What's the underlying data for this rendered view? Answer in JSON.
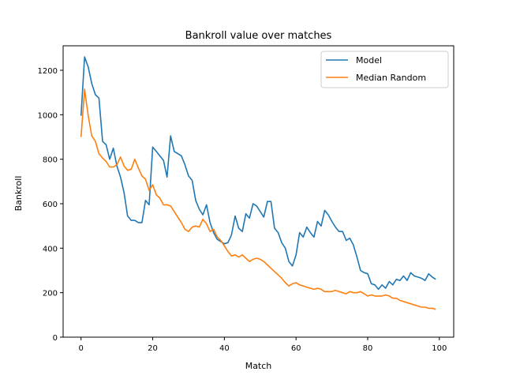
{
  "chart_data": {
    "type": "line",
    "title": "Bankroll value over matches",
    "xlabel": "Match",
    "ylabel": "Bankroll",
    "xlim": [
      -5,
      104
    ],
    "ylim": [
      0,
      1310
    ],
    "xticks": [
      0,
      20,
      40,
      60,
      80,
      100
    ],
    "yticks": [
      0,
      200,
      400,
      600,
      800,
      1000,
      1200
    ],
    "legend_position": "top-right",
    "grid": false,
    "series": [
      {
        "name": "Model",
        "color": "#1f77b4",
        "x": [
          0,
          1,
          2,
          3,
          4,
          5,
          6,
          7,
          8,
          9,
          10,
          11,
          12,
          13,
          14,
          15,
          16,
          17,
          18,
          19,
          20,
          21,
          22,
          23,
          24,
          25,
          26,
          27,
          28,
          29,
          30,
          31,
          32,
          33,
          34,
          35,
          36,
          37,
          38,
          39,
          40,
          41,
          42,
          43,
          44,
          45,
          46,
          47,
          48,
          49,
          50,
          51,
          52,
          53,
          54,
          55,
          56,
          57,
          58,
          59,
          60,
          61,
          62,
          63,
          64,
          65,
          66,
          67,
          68,
          69,
          70,
          71,
          72,
          73,
          74,
          75,
          76,
          77,
          78,
          79,
          80,
          81,
          82,
          83,
          84,
          85,
          86,
          87,
          88,
          89,
          90,
          91,
          92,
          93,
          94,
          95,
          96,
          97,
          98,
          99
        ],
        "values": [
          995,
          1260,
          1215,
          1140,
          1090,
          1075,
          880,
          865,
          800,
          850,
          770,
          720,
          650,
          545,
          525,
          525,
          515,
          515,
          615,
          595,
          855,
          835,
          815,
          795,
          720,
          905,
          835,
          825,
          815,
          775,
          725,
          705,
          615,
          575,
          550,
          595,
          515,
          470,
          440,
          430,
          420,
          425,
          460,
          545,
          490,
          475,
          555,
          535,
          600,
          590,
          565,
          540,
          610,
          610,
          490,
          470,
          425,
          400,
          340,
          320,
          370,
          470,
          450,
          495,
          470,
          450,
          520,
          500,
          570,
          550,
          520,
          495,
          475,
          475,
          435,
          445,
          415,
          360,
          300,
          290,
          285,
          240,
          235,
          215,
          235,
          220,
          250,
          235,
          260,
          255,
          275,
          255,
          290,
          275,
          270,
          265,
          255,
          285,
          270,
          260
        ],
        "name_label": "Model"
      },
      {
        "name": "Median Random",
        "color": "#ff7f0e",
        "x": [
          0,
          1,
          2,
          3,
          4,
          5,
          6,
          7,
          8,
          9,
          10,
          11,
          12,
          13,
          14,
          15,
          16,
          17,
          18,
          19,
          20,
          21,
          22,
          23,
          24,
          25,
          26,
          27,
          28,
          29,
          30,
          31,
          32,
          33,
          34,
          35,
          36,
          37,
          38,
          39,
          40,
          41,
          42,
          43,
          44,
          45,
          46,
          47,
          48,
          49,
          50,
          51,
          52,
          53,
          54,
          55,
          56,
          57,
          58,
          59,
          60,
          61,
          62,
          63,
          64,
          65,
          66,
          67,
          68,
          69,
          70,
          71,
          72,
          73,
          74,
          75,
          76,
          77,
          78,
          79,
          80,
          81,
          82,
          83,
          84,
          85,
          86,
          87,
          88,
          89,
          90,
          91,
          92,
          93,
          94,
          95,
          96,
          97,
          98,
          99
        ],
        "values": [
          900,
          1115,
          995,
          905,
          880,
          825,
          805,
          790,
          765,
          765,
          775,
          810,
          770,
          750,
          755,
          800,
          760,
          725,
          710,
          660,
          685,
          640,
          625,
          595,
          595,
          590,
          565,
          540,
          515,
          485,
          475,
          495,
          500,
          495,
          530,
          510,
          475,
          485,
          450,
          435,
          410,
          385,
          365,
          370,
          360,
          370,
          355,
          340,
          350,
          355,
          350,
          340,
          325,
          310,
          295,
          280,
          265,
          245,
          230,
          240,
          245,
          235,
          230,
          225,
          220,
          215,
          220,
          215,
          205,
          205,
          205,
          210,
          205,
          200,
          195,
          205,
          200,
          200,
          205,
          195,
          185,
          190,
          185,
          185,
          185,
          190,
          185,
          175,
          175,
          165,
          160,
          155,
          150,
          145,
          140,
          135,
          135,
          130,
          130,
          125
        ],
        "name_label": "Median Random"
      }
    ]
  }
}
